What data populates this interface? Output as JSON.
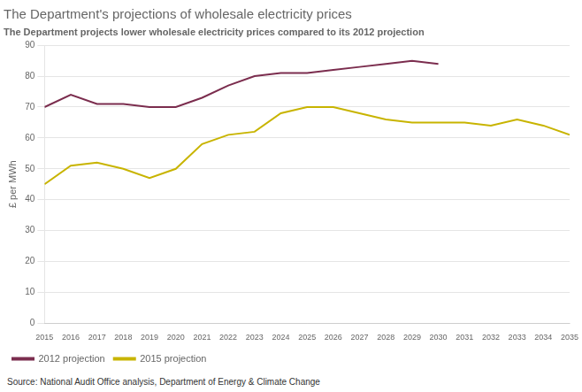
{
  "chart_data": {
    "type": "line",
    "title": "The Department's projections of wholesale electricity prices",
    "subtitle": "The Department projects lower wholesale electricity prices compared to its 2012 projection",
    "y_label": "£ per MWh",
    "source": "Source: National Audit Office analysis, Department of Energy & Climate Change",
    "x": [
      2015,
      2016,
      2017,
      2018,
      2019,
      2020,
      2021,
      2022,
      2023,
      2024,
      2025,
      2026,
      2027,
      2028,
      2029,
      2030,
      2031,
      2032,
      2033,
      2034,
      2035
    ],
    "series": [
      {
        "name": "2012 projection",
        "color": "#7b2d4e",
        "values": [
          70,
          74,
          71,
          71,
          70,
          70,
          73,
          77,
          80,
          81,
          81,
          82,
          83,
          84,
          85,
          84,
          null,
          null,
          null,
          null,
          null
        ]
      },
      {
        "name": "2015 projection",
        "color": "#c8b400",
        "values": [
          45,
          51,
          52,
          50,
          47,
          50,
          58,
          61,
          62,
          68,
          70,
          70,
          68,
          66,
          65,
          65,
          65,
          64,
          66,
          64,
          61
        ]
      }
    ],
    "xlim": [
      2015,
      2035
    ],
    "xticks": [
      2015,
      2016,
      2017,
      2018,
      2019,
      2020,
      2021,
      2022,
      2023,
      2024,
      2025,
      2026,
      2027,
      2028,
      2029,
      2030,
      2031,
      2032,
      2033,
      2034,
      2035
    ],
    "ylim": [
      0,
      90
    ],
    "yticks": [
      0,
      10,
      20,
      30,
      40,
      50,
      60,
      70,
      80,
      90
    ],
    "grid": "y",
    "legend": "bottom"
  }
}
